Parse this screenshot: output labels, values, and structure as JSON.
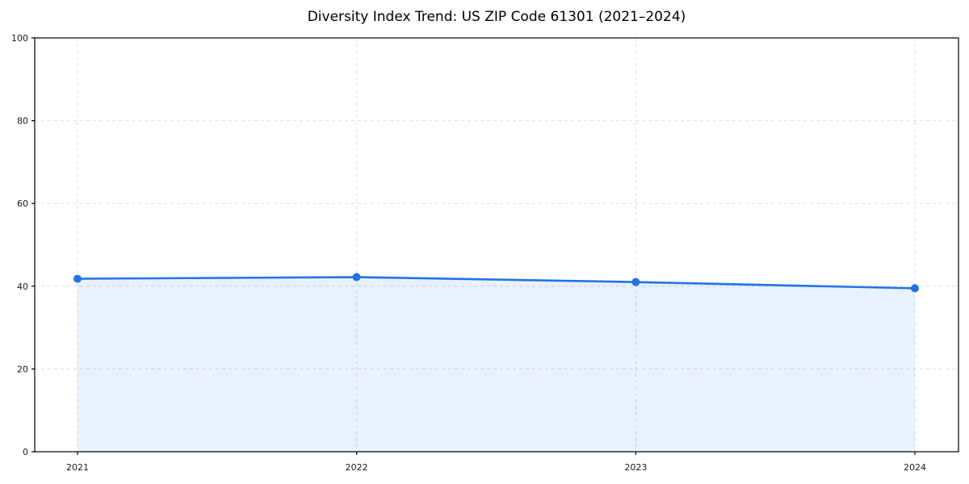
{
  "chart_data": {
    "type": "area",
    "title": "Diversity Index Trend: US ZIP Code 61301 (2021–2024)",
    "xlabel": "",
    "ylabel": "",
    "x": [
      "2021",
      "2022",
      "2023",
      "2024"
    ],
    "series": [
      {
        "name": "Diversity Index",
        "values": [
          41.8,
          42.2,
          41.0,
          39.5
        ]
      }
    ],
    "ylim": [
      0,
      100
    ],
    "yticks": [
      0,
      20,
      40,
      60,
      80,
      100
    ],
    "grid": "dashed-both",
    "legend_position": "none",
    "marker": "circle",
    "colors": {
      "line": "#2173e6",
      "marker": "#2173e6",
      "fill": "#2173e6",
      "grid": "#dcdcdc",
      "axis": "#000000",
      "tick_label": "#1a1a1a",
      "title": "#000000",
      "background": "#ffffff"
    },
    "fill_opacity": 0.1
  }
}
